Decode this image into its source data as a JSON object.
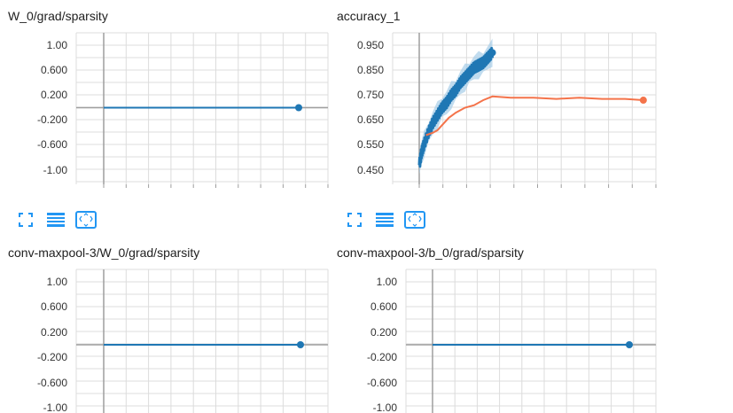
{
  "colors": {
    "blue": "#1f77b4",
    "blue_light": "#a6cde8",
    "orange": "#f4734a",
    "grid": "#dcdcdc",
    "axis": "#9e9e9e",
    "toolbar_icon": "#2196f3"
  },
  "toolbar": {
    "icons": [
      "fit-domain-icon",
      "toggle-log-icon",
      "expand-icon"
    ]
  },
  "chart_data": [
    {
      "title": "W_0/grad/sparsity",
      "type": "line",
      "ylim": [
        -1.2,
        1.2
      ],
      "yticks": [
        "1.00",
        "0.600",
        "0.200",
        "-0.200",
        "-0.600",
        "-1.00"
      ],
      "ytick_values": [
        1.0,
        0.6,
        0.2,
        -0.2,
        -0.6,
        -1.0
      ],
      "xlim": [
        0,
        1
      ],
      "series": [
        {
          "color": "#1f77b4",
          "x": [
            0.0,
            1.0
          ],
          "y": [
            0.0,
            0.0
          ]
        }
      ]
    },
    {
      "title": "accuracy_1",
      "type": "line",
      "ylim": [
        0.41,
        0.97
      ],
      "yticks": [
        "0.950",
        "0.850",
        "0.750",
        "0.650",
        "0.550",
        "0.450"
      ],
      "ytick_values": [
        0.95,
        0.85,
        0.75,
        0.65,
        0.55,
        0.45
      ],
      "xlim": [
        0,
        1
      ],
      "series": [
        {
          "color": "#1f77b4",
          "style": "noisy",
          "x": [
            0.0,
            0.01,
            0.02,
            0.04,
            0.06,
            0.08,
            0.1,
            0.12,
            0.14,
            0.16,
            0.18,
            0.2,
            0.22,
            0.24,
            0.26,
            0.28,
            0.3,
            0.32
          ],
          "y": [
            0.47,
            0.52,
            0.55,
            0.6,
            0.64,
            0.67,
            0.7,
            0.72,
            0.75,
            0.77,
            0.8,
            0.82,
            0.84,
            0.86,
            0.87,
            0.88,
            0.9,
            0.92
          ]
        },
        {
          "color": "#f4734a",
          "style": "smooth",
          "x": [
            0.03,
            0.06,
            0.08,
            0.1,
            0.13,
            0.16,
            0.2,
            0.24,
            0.28,
            0.32,
            0.4,
            0.5,
            0.6,
            0.7,
            0.8,
            0.9,
            0.98
          ],
          "y": [
            0.59,
            0.6,
            0.61,
            0.63,
            0.66,
            0.68,
            0.7,
            0.71,
            0.73,
            0.745,
            0.74,
            0.74,
            0.735,
            0.74,
            0.735,
            0.735,
            0.73
          ]
        }
      ]
    },
    {
      "title": "conv-maxpool-3/W_0/grad/sparsity",
      "type": "line",
      "ylim": [
        -1.2,
        1.2
      ],
      "yticks": [
        "1.00",
        "0.600",
        "0.200",
        "-0.200",
        "-0.600",
        "-1.00"
      ],
      "ytick_values": [
        1.0,
        0.6,
        0.2,
        -0.2,
        -0.6,
        -1.0
      ],
      "xlim": [
        0,
        1
      ],
      "series": [
        {
          "color": "#1f77b4",
          "x": [
            0.0,
            1.0
          ],
          "y": [
            0.0,
            0.0
          ]
        }
      ]
    },
    {
      "title": "conv-maxpool-3/b_0/grad/sparsity",
      "type": "line",
      "ylim": [
        -1.2,
        1.2
      ],
      "yticks": [
        "1.00",
        "0.600",
        "0.200",
        "-0.200",
        "-0.600",
        "-1.00"
      ],
      "ytick_values": [
        1.0,
        0.6,
        0.2,
        -0.2,
        -0.6,
        -1.0
      ],
      "xlim": [
        0,
        1
      ],
      "series": [
        {
          "color": "#1f77b4",
          "x": [
            0.0,
            1.0
          ],
          "y": [
            0.0,
            0.0
          ]
        }
      ]
    }
  ]
}
